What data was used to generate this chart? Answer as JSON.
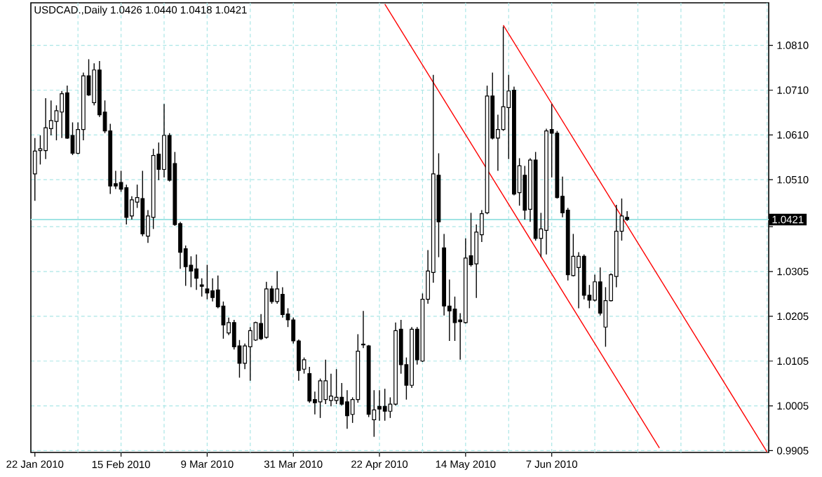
{
  "chart_data": {
    "type": "candlestick",
    "title": "USDCAD.,Daily  1.0426 1.0440 1.0418 1.0421",
    "categories": [
      "22 Jan 2010",
      null,
      null,
      null,
      null,
      null,
      null,
      null,
      null,
      null,
      null,
      null,
      null,
      null,
      null,
      null,
      "15 Feb 2010",
      null,
      null,
      null,
      null,
      null,
      null,
      null,
      null,
      null,
      null,
      null,
      null,
      null,
      null,
      null,
      "9 Mar 2010",
      null,
      null,
      null,
      null,
      null,
      null,
      null,
      null,
      null,
      null,
      null,
      null,
      null,
      null,
      null,
      "31 Mar 2010",
      null,
      null,
      null,
      null,
      null,
      null,
      null,
      null,
      null,
      null,
      null,
      null,
      null,
      null,
      null,
      "22 Apr 2010",
      null,
      null,
      null,
      null,
      null,
      null,
      null,
      null,
      null,
      null,
      null,
      null,
      null,
      null,
      null,
      "14 May 2010",
      null,
      null,
      null,
      null,
      null,
      null,
      null,
      null,
      null,
      null,
      null,
      null,
      null,
      null,
      null,
      "7 Jun 2010",
      null,
      null,
      null,
      null,
      null,
      null,
      null,
      null,
      null,
      null,
      null,
      null,
      null,
      null,
      null,
      null,
      null,
      null,
      null,
      null,
      null,
      null,
      null,
      null,
      null,
      null,
      null,
      null,
      null,
      null,
      null,
      null,
      null,
      null,
      null,
      null,
      null,
      null,
      null,
      null
    ],
    "ohlc": [
      [
        1.0523,
        1.0603,
        1.0463,
        1.0574
      ],
      [
        1.0575,
        1.0609,
        1.0544,
        1.0579
      ],
      [
        1.0575,
        1.0692,
        1.0556,
        1.0626
      ],
      [
        1.0624,
        1.0687,
        1.0609,
        1.0642
      ],
      [
        1.064,
        1.0676,
        1.0598,
        1.0664
      ],
      [
        1.0661,
        1.0708,
        1.0603,
        1.0702
      ],
      [
        1.0704,
        1.072,
        1.0601,
        1.0603
      ],
      [
        1.0609,
        1.0638,
        1.0565,
        1.0569
      ],
      [
        1.0569,
        1.0638,
        1.0567,
        1.0622
      ],
      [
        1.0622,
        1.0749,
        1.0598,
        1.0742
      ],
      [
        1.0742,
        1.0779,
        1.0697,
        1.0699
      ],
      [
        1.0682,
        1.077,
        1.0676,
        1.0755
      ],
      [
        1.0755,
        1.0775,
        1.065,
        1.0655
      ],
      [
        1.0661,
        1.0687,
        1.0614,
        1.0619
      ],
      [
        1.0619,
        1.0635,
        1.0478,
        1.0496
      ],
      [
        1.0501,
        1.053,
        1.0489,
        1.0496
      ],
      [
        1.0504,
        1.053,
        1.0483,
        1.0489
      ],
      [
        1.0492,
        1.0499,
        1.041,
        1.0426
      ],
      [
        1.0429,
        1.0473,
        1.0421,
        1.0465
      ],
      [
        1.046,
        1.0499,
        1.0447,
        1.047
      ],
      [
        1.0468,
        1.053,
        1.0384,
        1.0389
      ],
      [
        1.0384,
        1.0442,
        1.0369,
        1.0429
      ],
      [
        1.0426,
        1.0579,
        1.04,
        1.0564
      ],
      [
        1.0567,
        1.0593,
        1.0509,
        1.0533
      ],
      [
        1.0533,
        1.0679,
        1.0515,
        1.0609
      ],
      [
        1.0609,
        1.0614,
        1.0506,
        1.0509
      ],
      [
        1.0546,
        1.0572,
        1.0407,
        1.041
      ],
      [
        1.0412,
        1.0416,
        1.0311,
        1.0348
      ],
      [
        1.0356,
        1.0363,
        1.0273,
        1.0316
      ],
      [
        1.0319,
        1.0339,
        1.027,
        1.0306
      ],
      [
        1.0311,
        1.0343,
        1.0264,
        1.029
      ],
      [
        1.0275,
        1.029,
        1.0249,
        1.0272
      ],
      [
        1.0266,
        1.032,
        1.0243,
        1.0257
      ],
      [
        1.0262,
        1.029,
        1.0238,
        1.0247
      ],
      [
        1.0264,
        1.0296,
        1.0223,
        1.0226
      ],
      [
        1.0228,
        1.0238,
        1.0155,
        1.0186
      ],
      [
        1.0168,
        1.0202,
        1.0163,
        1.0191
      ],
      [
        1.0191,
        1.0197,
        1.0131,
        1.0137
      ],
      [
        1.0139,
        1.0152,
        1.0068,
        1.01
      ],
      [
        1.01,
        1.0144,
        1.0087,
        1.0139
      ],
      [
        1.0137,
        1.0181,
        1.0061,
        1.0173
      ],
      [
        1.0152,
        1.0193,
        1.015,
        1.0191
      ],
      [
        1.0189,
        1.021,
        1.0152,
        1.0155
      ],
      [
        1.0158,
        1.0282,
        1.0155,
        1.0266
      ],
      [
        1.0266,
        1.0273,
        1.0233,
        1.0238
      ],
      [
        1.0238,
        1.0306,
        1.0233,
        1.0266
      ],
      [
        1.0254,
        1.027,
        1.0202,
        1.0209
      ],
      [
        1.021,
        1.0223,
        1.0181,
        1.0197
      ],
      [
        1.0197,
        1.0202,
        1.0144,
        1.015
      ],
      [
        1.015,
        1.0153,
        1.0061,
        1.0084
      ],
      [
        1.0087,
        1.0113,
        1.0077,
        1.0108
      ],
      [
        1.0077,
        1.0092,
        1.0012,
        1.0016
      ],
      [
        1.0019,
        1.0037,
        0.9986,
        1.0012
      ],
      [
        1.0014,
        1.0066,
        0.9978,
        1.0061
      ],
      [
        1.0019,
        1.0108,
        1.0009,
        1.0061
      ],
      [
        1.0017,
        1.0077,
        1.0004,
        1.0027
      ],
      [
        1.0017,
        1.0087,
        1.0009,
        1.0024
      ],
      [
        1.0024,
        1.0056,
        1.0006,
        1.0009
      ],
      [
        1.0014,
        1.004,
        0.9954,
        0.9983
      ],
      [
        0.9986,
        1.0024,
        0.9967,
        1.0019
      ],
      [
        1.0019,
        1.0165,
        1.0012,
        1.0127
      ],
      [
        1.0143,
        1.0217,
        1.0134,
        1.0141
      ],
      [
        1.0139,
        1.0141,
        0.998,
        0.9986
      ],
      [
        0.9974,
        1.004,
        0.9936,
        0.9996
      ],
      [
        1.0004,
        1.004,
        0.9972,
        0.9998
      ],
      [
        1.0004,
        1.0043,
        0.9972,
        0.9993
      ],
      [
        0.9993,
        1.0024,
        0.9978,
        1.0009
      ],
      [
        1.0009,
        1.0191,
        1.0006,
        1.0173
      ],
      [
        1.0176,
        1.0197,
        1.0077,
        1.0097
      ],
      [
        1.0097,
        1.0113,
        1.0019,
        1.0051
      ],
      [
        1.0051,
        1.0181,
        1.0045,
        1.0176
      ],
      [
        1.0176,
        1.0181,
        1.0097,
        1.0108
      ],
      [
        1.0105,
        1.0256,
        1.0103,
        1.0243
      ],
      [
        1.0243,
        1.0353,
        1.0233,
        1.0306
      ],
      [
        1.0303,
        1.0744,
        1.028,
        1.0523
      ],
      [
        1.052,
        1.0569,
        1.0337,
        1.0416
      ],
      [
        1.0358,
        1.0389,
        1.0207,
        1.0228
      ],
      [
        1.0228,
        1.0287,
        1.015,
        1.0217
      ],
      [
        1.0221,
        1.0249,
        1.015,
        1.0191
      ],
      [
        1.0197,
        1.0212,
        1.0108,
        1.0193
      ],
      [
        1.0191,
        1.0379,
        1.0189,
        1.0335
      ],
      [
        1.034,
        1.0436,
        1.0316,
        1.032
      ],
      [
        1.0322,
        1.041,
        1.0246,
        1.0393
      ],
      [
        1.0387,
        1.0442,
        1.0371,
        1.0434
      ],
      [
        1.0436,
        1.072,
        1.0433,
        1.0697
      ],
      [
        1.0697,
        1.0749,
        1.06,
        1.0603
      ],
      [
        1.0603,
        1.0655,
        1.053,
        1.0622
      ],
      [
        1.0622,
        1.0852,
        1.0619,
        1.0673
      ],
      [
        1.0671,
        1.0744,
        1.0556,
        1.0708
      ],
      [
        1.071,
        1.0718,
        1.0475,
        1.0478
      ],
      [
        1.0481,
        1.0558,
        1.0452,
        1.0541
      ],
      [
        1.052,
        1.0541,
        1.0421,
        1.0442
      ],
      [
        1.0444,
        1.0558,
        1.0416,
        1.0554
      ],
      [
        1.0554,
        1.0572,
        1.0374,
        1.0379
      ],
      [
        1.0379,
        1.0436,
        1.0337,
        1.04
      ],
      [
        1.0397,
        1.0624,
        1.0343,
        1.0619
      ],
      [
        1.0622,
        1.0679,
        1.0515,
        1.0614
      ],
      [
        1.0614,
        1.0619,
        1.0468,
        1.047
      ],
      [
        1.0473,
        1.0517,
        1.0426,
        1.0436
      ],
      [
        1.0442,
        1.0447,
        1.0285,
        1.0298
      ],
      [
        1.0296,
        1.0389,
        1.0294,
        1.0339
      ],
      [
        1.0314,
        1.0348,
        1.0223,
        1.0339
      ],
      [
        1.0339,
        1.0343,
        1.0243,
        1.0252
      ],
      [
        1.0252,
        1.0275,
        1.0223,
        1.0241
      ],
      [
        1.0241,
        1.0298,
        1.0238,
        1.0282
      ],
      [
        1.0282,
        1.0314,
        1.0207,
        1.0212
      ],
      [
        1.0181,
        1.027,
        1.0137,
        1.024
      ],
      [
        1.024,
        1.0301,
        1.0238,
        1.0298
      ],
      [
        1.0294,
        1.0454,
        1.027,
        1.0395
      ],
      [
        1.0395,
        1.0468,
        1.0374,
        1.0429
      ],
      [
        1.0426,
        1.044,
        1.0418,
        1.0421
      ],
      null,
      null,
      null,
      null,
      null,
      null,
      null,
      null,
      null,
      null,
      null,
      null,
      null,
      null,
      null,
      null,
      null,
      null,
      null,
      null,
      null,
      null,
      null,
      null,
      null,
      null
    ],
    "series": [
      {
        "type": "line",
        "color": "#ff0000",
        "values": [
          null,
          null,
          null,
          null,
          null,
          null,
          null,
          null,
          null,
          null,
          null,
          null,
          null,
          null,
          null,
          null,
          null,
          null,
          null,
          null,
          null,
          null,
          null,
          null,
          null,
          null,
          null,
          null,
          null,
          null,
          null,
          null,
          null,
          null,
          null,
          null,
          null,
          null,
          null,
          null,
          null,
          null,
          null,
          null,
          null,
          null,
          null,
          null,
          null,
          null,
          null,
          null,
          null,
          null,
          null,
          null,
          null,
          null,
          null,
          null,
          null,
          null,
          null,
          null,
          null,
          1.0902,
          null,
          null,
          null,
          null,
          null,
          null,
          null,
          null,
          null,
          null,
          null,
          null,
          null,
          null,
          null,
          null,
          null,
          null,
          null,
          null,
          null,
          null,
          null,
          null,
          null,
          null,
          null,
          null,
          null,
          null,
          null,
          null,
          null,
          null,
          null,
          null,
          null,
          null,
          null,
          null,
          null,
          null,
          null,
          null,
          null,
          null,
          null,
          null,
          null,
          null,
          0.9911,
          null,
          null,
          null,
          null,
          null,
          null,
          null,
          null,
          null,
          null,
          null,
          null,
          null,
          null,
          null,
          null,
          null,
          null,
          null,
          null
        ]
      },
      {
        "type": "line",
        "color": "#ff0000",
        "values": [
          null,
          null,
          null,
          null,
          null,
          null,
          null,
          null,
          null,
          null,
          null,
          null,
          null,
          null,
          null,
          null,
          null,
          null,
          null,
          null,
          null,
          null,
          null,
          null,
          null,
          null,
          null,
          null,
          null,
          null,
          null,
          null,
          null,
          null,
          null,
          null,
          null,
          null,
          null,
          null,
          null,
          null,
          null,
          null,
          null,
          null,
          null,
          null,
          null,
          null,
          null,
          null,
          null,
          null,
          null,
          null,
          null,
          null,
          null,
          null,
          null,
          null,
          null,
          null,
          null,
          null,
          null,
          null,
          null,
          null,
          null,
          null,
          null,
          null,
          null,
          null,
          null,
          null,
          null,
          null,
          null,
          null,
          null,
          null,
          null,
          null,
          null,
          1.0855,
          null,
          null,
          null,
          null,
          null,
          null,
          null,
          null,
          null,
          null,
          null,
          null,
          null,
          null,
          null,
          null,
          null,
          null,
          null,
          null,
          null,
          null,
          null,
          null,
          null,
          null,
          null,
          null,
          null,
          null,
          null,
          null,
          null,
          null,
          null,
          null,
          null,
          null,
          null,
          null,
          null,
          null,
          null,
          null,
          null,
          null,
          null,
          null,
          0.9902
        ]
      }
    ],
    "ylim": [
      0.9901,
      1.0905
    ],
    "yticks": [
      {
        "value": 1.081,
        "label": "1.0810"
      },
      {
        "value": 1.071,
        "label": "1.0710"
      },
      {
        "value": 1.061,
        "label": "1.0610"
      },
      {
        "value": 1.051,
        "label": "1.0510"
      },
      {
        "value": 1.0405,
        "label": null
      },
      1.0305,
      1.0205,
      1.0105,
      1.0005,
      0.9905
    ],
    "ref_lines": [
      {
        "axis": "y",
        "value": 1.0421,
        "label": "1.0421",
        "color": "#a0e4e4"
      }
    ],
    "grid": true
  }
}
